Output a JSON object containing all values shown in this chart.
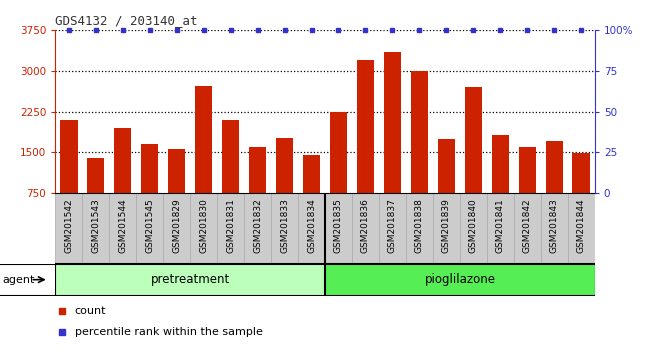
{
  "title": "GDS4132 / 203140_at",
  "categories": [
    "GSM201542",
    "GSM201543",
    "GSM201544",
    "GSM201545",
    "GSM201829",
    "GSM201830",
    "GSM201831",
    "GSM201832",
    "GSM201833",
    "GSM201834",
    "GSM201835",
    "GSM201836",
    "GSM201837",
    "GSM201838",
    "GSM201839",
    "GSM201840",
    "GSM201841",
    "GSM201842",
    "GSM201843",
    "GSM201844"
  ],
  "counts": [
    2100,
    1390,
    1950,
    1650,
    1560,
    2720,
    2100,
    1590,
    1760,
    1440,
    2240,
    3200,
    3340,
    3000,
    1750,
    2700,
    1820,
    1600,
    1700,
    1480
  ],
  "percentile_ranks": [
    100,
    100,
    100,
    100,
    100,
    100,
    100,
    100,
    100,
    100,
    100,
    100,
    100,
    100,
    100,
    100,
    100,
    100,
    100,
    100
  ],
  "bar_color": "#cc2200",
  "dot_color": "#3333cc",
  "ylim_left": [
    750,
    3750
  ],
  "ylim_right": [
    0,
    100
  ],
  "yticks_left": [
    750,
    1500,
    2250,
    3000,
    3750
  ],
  "yticks_right": [
    0,
    25,
    50,
    75,
    100
  ],
  "group1_label": "pretreatment",
  "group2_label": "pioglilazone",
  "group1_count": 10,
  "group2_count": 10,
  "group1_color": "#bbffbb",
  "group2_color": "#55ee55",
  "agent_label": "agent",
  "legend_count_label": "count",
  "legend_pct_label": "percentile rank within the sample",
  "title_color": "#333333",
  "left_tick_color": "#cc2200",
  "right_tick_color": "#3333cc",
  "xtick_bg_color": "#cccccc",
  "plot_bg": "#ffffff",
  "grid_color": "#000000",
  "border_color": "#000000"
}
